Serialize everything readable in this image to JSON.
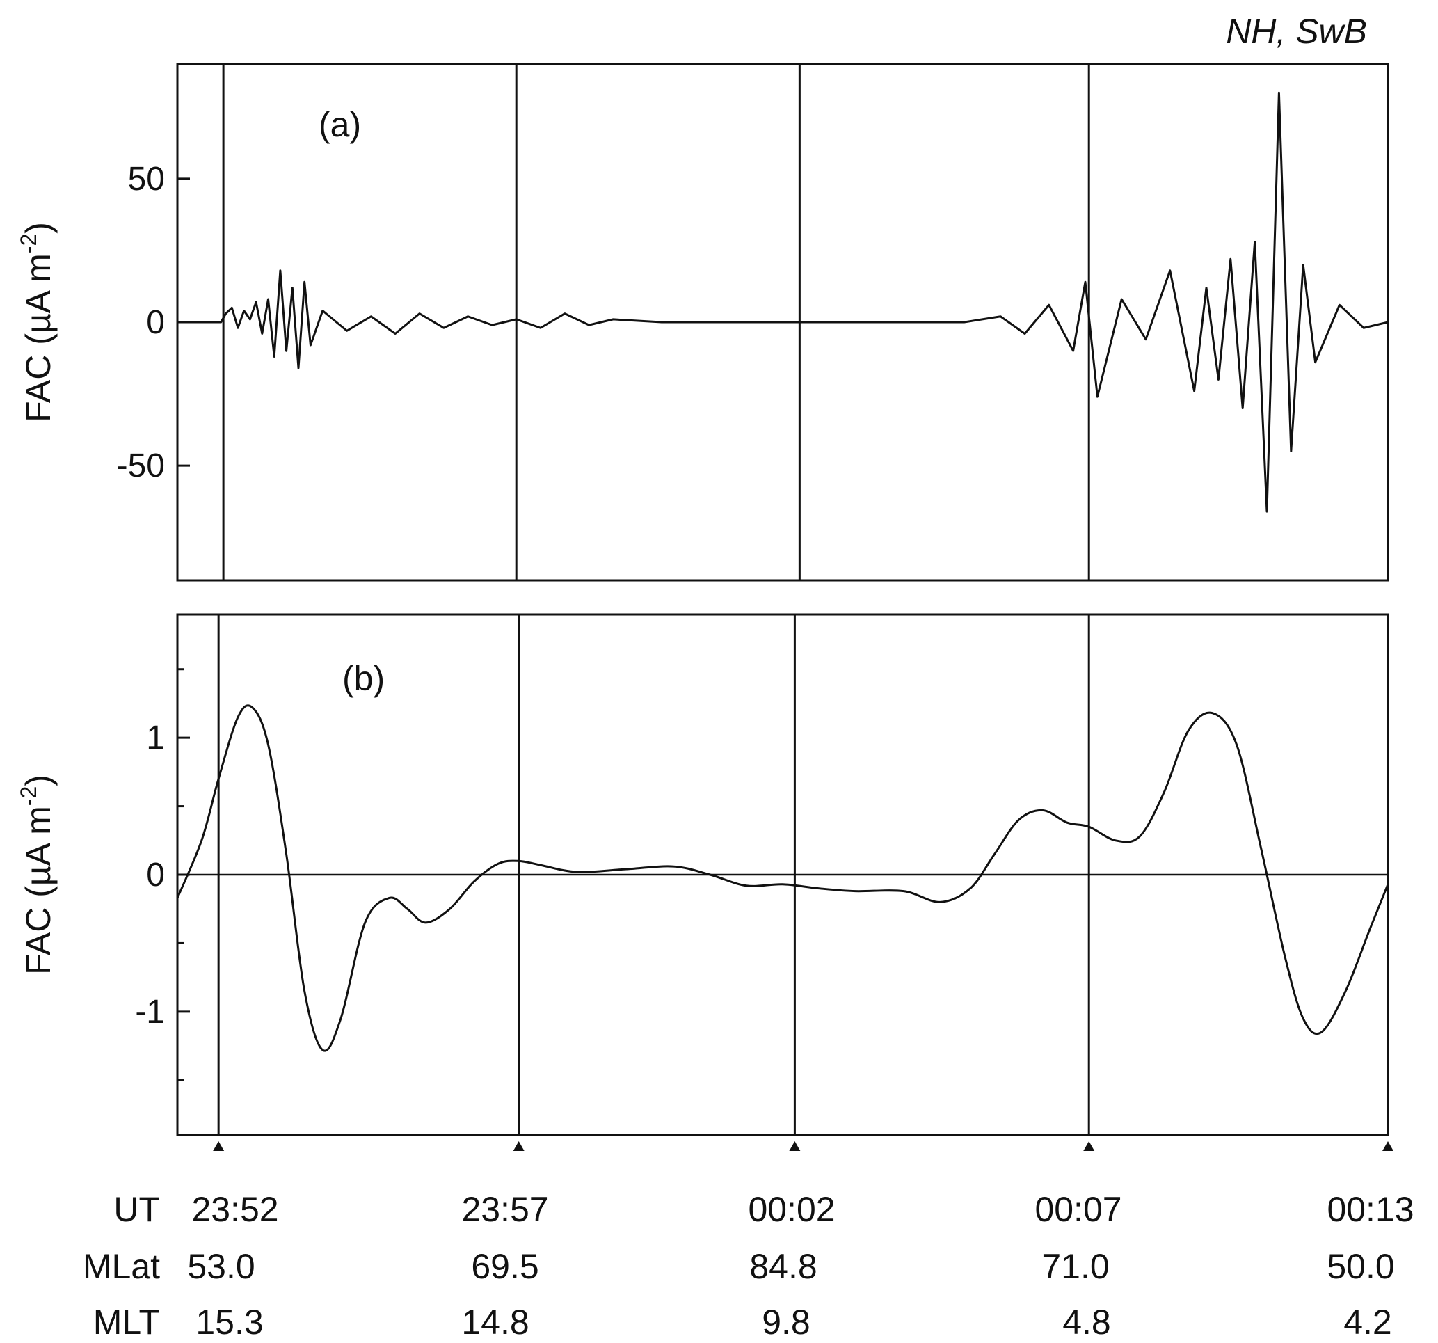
{
  "corner_label": "NH,  SwB",
  "chart_data": [
    {
      "panel": "(a)",
      "type": "line",
      "ylabel": "FAC (µA m",
      "ylabel_sup": "-2",
      "ylabel_close": ")",
      "ylim": [
        -90,
        90
      ],
      "yticks": [
        -50,
        0,
        50
      ],
      "ytick_labels": [
        "-50",
        "0",
        "50"
      ],
      "xlim": [
        0,
        1
      ],
      "vlines": [
        0.038,
        0.28,
        0.514,
        0.753
      ],
      "series": [
        {
          "values_description_none": "",
          "x": [
            0.0,
            0.03,
            0.036,
            0.04,
            0.045,
            0.05,
            0.055,
            0.06,
            0.065,
            0.07,
            0.075,
            0.08,
            0.085,
            0.09,
            0.095,
            0.1,
            0.105,
            0.11,
            0.12,
            0.14,
            0.16,
            0.18,
            0.2,
            0.22,
            0.24,
            0.26,
            0.28,
            0.3,
            0.32,
            0.34,
            0.36,
            0.4,
            0.45,
            0.5,
            0.55,
            0.6,
            0.65,
            0.68,
            0.7,
            0.72,
            0.74,
            0.75,
            0.76,
            0.78,
            0.8,
            0.82,
            0.84,
            0.85,
            0.86,
            0.87,
            0.88,
            0.89,
            0.9,
            0.91,
            0.92,
            0.93,
            0.94,
            0.96,
            0.98,
            1.0
          ],
          "y": [
            0,
            0,
            0,
            3,
            5,
            -2,
            4,
            1,
            7,
            -4,
            8,
            -12,
            18,
            -10,
            12,
            -16,
            14,
            -8,
            4,
            -3,
            2,
            -4,
            3,
            -2,
            2,
            -1,
            1,
            -2,
            3,
            -1,
            1,
            0,
            0,
            0,
            0,
            0,
            0,
            2,
            -4,
            6,
            -10,
            14,
            -26,
            8,
            -6,
            18,
            -24,
            12,
            -20,
            22,
            -30,
            28,
            -66,
            80,
            -45,
            20,
            -14,
            6,
            -2,
            0
          ],
          "name": ""
        }
      ]
    },
    {
      "panel": "(b)",
      "type": "line",
      "ylabel": "FAC (µA m",
      "ylabel_sup": "-2",
      "ylabel_close": ")",
      "ylim": [
        -1.9,
        1.9
      ],
      "yticks": [
        -1,
        0,
        1
      ],
      "ytick_labels": [
        "-1",
        "0",
        "1"
      ],
      "xlim": [
        0,
        1
      ],
      "vlines": [
        0.034,
        0.282,
        0.51,
        0.753
      ],
      "series": [
        {
          "name": "",
          "x": [
            0.0,
            0.02,
            0.034,
            0.05,
            0.062,
            0.075,
            0.09,
            0.105,
            0.12,
            0.135,
            0.155,
            0.175,
            0.19,
            0.205,
            0.225,
            0.245,
            0.265,
            0.282,
            0.3,
            0.33,
            0.37,
            0.41,
            0.44,
            0.47,
            0.5,
            0.53,
            0.56,
            0.6,
            0.63,
            0.655,
            0.675,
            0.695,
            0.715,
            0.735,
            0.753,
            0.775,
            0.795,
            0.815,
            0.835,
            0.855,
            0.875,
            0.895,
            0.915,
            0.93,
            0.945,
            0.965,
            0.985,
            1.0
          ],
          "y": [
            -0.17,
            0.25,
            0.7,
            1.15,
            1.22,
            0.95,
            0.15,
            -0.85,
            -1.28,
            -1.05,
            -0.35,
            -0.17,
            -0.25,
            -0.35,
            -0.25,
            -0.05,
            0.08,
            0.1,
            0.07,
            0.02,
            0.04,
            0.06,
            0.0,
            -0.08,
            -0.07,
            -0.1,
            -0.12,
            -0.12,
            -0.2,
            -0.1,
            0.15,
            0.4,
            0.47,
            0.38,
            0.35,
            0.25,
            0.28,
            0.6,
            1.05,
            1.18,
            0.95,
            0.2,
            -0.6,
            -1.05,
            -1.15,
            -0.85,
            -0.4,
            -0.07
          ]
        }
      ]
    }
  ],
  "x_labels": {
    "rows": [
      {
        "label": "UT",
        "values": [
          "23:52",
          "23:57",
          "00:02",
          "00:07",
          "00:13"
        ]
      },
      {
        "label": "MLat",
        "values": [
          "53.0",
          "69.5",
          "84.8",
          "71.0",
          "50.0"
        ]
      },
      {
        "label": "MLT",
        "values": [
          "15.3",
          "14.8",
          "9.8",
          "4.8",
          "4.2"
        ]
      }
    ],
    "tick_positions": [
      0.034,
      0.282,
      0.51,
      0.753,
      1.0
    ]
  }
}
